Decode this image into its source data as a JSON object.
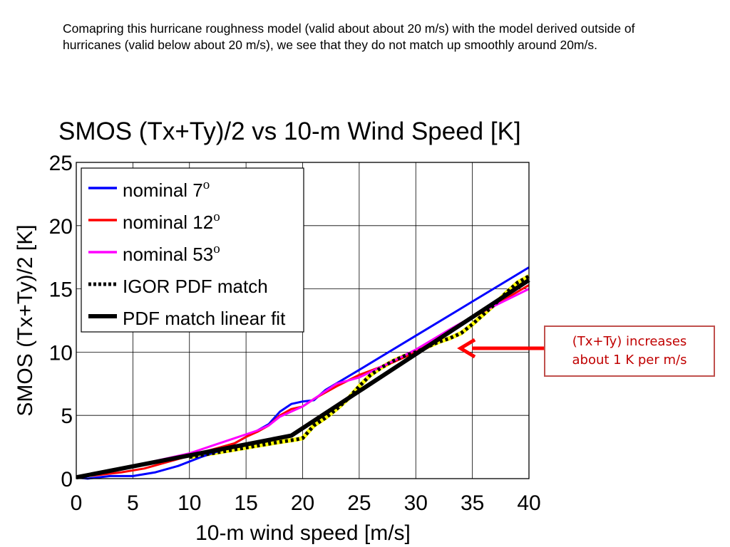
{
  "intro_text": "Comapring this hurricane roughness model (valid about about 20 m/s) with the model derived outside of hurricanes (valid below about 20 m/s), we see that they do not match up smoothly around 20m/s.",
  "callout": {
    "line1": "(Tx+Ty) increases",
    "line2": "about 1 K per m/s",
    "color": "#c00000"
  },
  "chart_data": {
    "type": "line",
    "title": "SMOS (Tx+Ty)/2 vs 10-m Wind Speed [K]",
    "xlabel": "10-m wind speed [m/s]",
    "ylabel": "SMOS (Tx+Ty)/2 [K]",
    "xlim": [
      0,
      40
    ],
    "ylim": [
      0,
      25
    ],
    "xticks": [
      0,
      5,
      10,
      15,
      20,
      25,
      30,
      35,
      40
    ],
    "yticks": [
      0,
      5,
      10,
      15,
      20,
      25
    ],
    "grid": true,
    "legend_position": "top-left",
    "series": [
      {
        "name": "nominal 7",
        "sup": "o",
        "color": "#0000ff",
        "style": "solid",
        "x": [
          0,
          1,
          3,
          5,
          7,
          9,
          11,
          13,
          15,
          16,
          17,
          18,
          19,
          20,
          21,
          22,
          25,
          30,
          35,
          40
        ],
        "y": [
          0.1,
          0.0,
          0.2,
          0.2,
          0.5,
          1.0,
          1.7,
          2.3,
          3.3,
          3.8,
          4.3,
          5.3,
          5.9,
          6.1,
          6.2,
          7.0,
          8.6,
          11.3,
          14.0,
          16.7
        ]
      },
      {
        "name": "nominal 12",
        "sup": "o",
        "color": "#ff0000",
        "style": "solid",
        "x": [
          0,
          2,
          4,
          6,
          8,
          10,
          12,
          14,
          15,
          16,
          17,
          18,
          19,
          20,
          21,
          23,
          25,
          28,
          30,
          33,
          35,
          40
        ],
        "y": [
          0.1,
          0.3,
          0.5,
          0.8,
          1.3,
          1.8,
          2.3,
          2.8,
          3.3,
          3.7,
          4.2,
          5.0,
          5.5,
          5.7,
          6.3,
          7.3,
          8.2,
          9.2,
          10.0,
          11.7,
          12.7,
          15.3
        ]
      },
      {
        "name": "nominal 53",
        "sup": "o",
        "color": "#ff00ff",
        "style": "solid",
        "x": [
          0,
          2,
          5,
          8,
          10,
          12,
          14,
          16,
          17,
          18,
          19,
          20,
          21,
          23,
          25,
          28,
          30,
          33,
          35,
          40
        ],
        "y": [
          0.1,
          0.5,
          1.0,
          1.6,
          2.0,
          2.6,
          3.2,
          3.8,
          4.2,
          4.9,
          5.3,
          5.7,
          6.3,
          7.5,
          8.0,
          9.3,
          10.2,
          11.8,
          12.8,
          15.0
        ]
      },
      {
        "name": "IGOR PDF match",
        "sup": "",
        "color": "#000000",
        "style": "dotted",
        "underlay": "#ffff00",
        "x": [
          10,
          12,
          14,
          16,
          18,
          19.5,
          20,
          21,
          22,
          23,
          24,
          25,
          26,
          27,
          28,
          29,
          30,
          31,
          32,
          33,
          34,
          35,
          36,
          37,
          38,
          39,
          40
        ],
        "y": [
          1.7,
          2.0,
          2.3,
          2.6,
          2.9,
          3.1,
          3.2,
          4.2,
          4.8,
          5.5,
          6.3,
          7.3,
          8.2,
          8.8,
          9.3,
          9.7,
          10.0,
          10.4,
          10.8,
          11.1,
          11.5,
          12.2,
          13.0,
          13.8,
          14.7,
          15.5,
          16.0
        ]
      },
      {
        "name": "PDF match linear fit",
        "sup": "",
        "color": "#000000",
        "style": "solid",
        "x": [
          0,
          19,
          40
        ],
        "y": [
          0.1,
          3.4,
          15.7
        ]
      }
    ]
  }
}
